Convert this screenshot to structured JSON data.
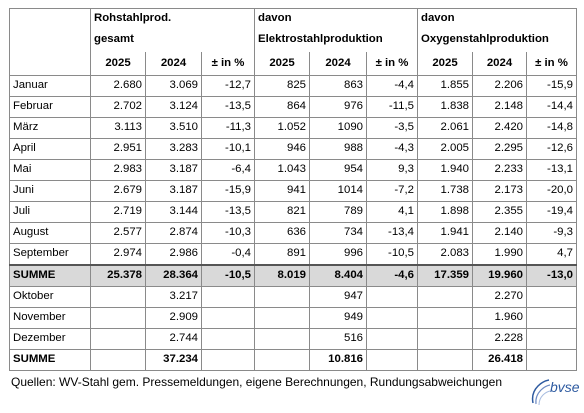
{
  "header": {
    "group1_line1": "Rohstahlprod.",
    "group1_line2": "gesamt",
    "group2_line1": "davon",
    "group2_line2": "Elektrostahlproduktion",
    "group3_line1": "davon",
    "group3_line2": "Oxygenstahlproduktion",
    "col_2025": "2025",
    "col_2024": "2024",
    "col_pct": "± in %"
  },
  "rows": [
    {
      "month": "Januar",
      "r25": "2.680",
      "r24": "3.069",
      "rp": "-12,7",
      "e25": "825",
      "e24": "863",
      "ep": "-4,4",
      "o25": "1.855",
      "o24": "2.206",
      "op": "-15,9"
    },
    {
      "month": "Februar",
      "r25": "2.702",
      "r24": "3.124",
      "rp": "-13,5",
      "e25": "864",
      "e24": "976",
      "ep": "-11,5",
      "o25": "1.838",
      "o24": "2.148",
      "op": "-14,4"
    },
    {
      "month": "März",
      "r25": "3.113",
      "r24": "3.510",
      "rp": "-11,3",
      "e25": "1.052",
      "e24": "1090",
      "ep": "-3,5",
      "o25": "2.061",
      "o24": "2.420",
      "op": "-14,8"
    },
    {
      "month": "April",
      "r25": "2.951",
      "r24": "3.283",
      "rp": "-10,1",
      "e25": "946",
      "e24": "988",
      "ep": "-4,3",
      "o25": "2.005",
      "o24": "2.295",
      "op": "-12,6"
    },
    {
      "month": "Mai",
      "r25": "2.983",
      "r24": "3.187",
      "rp": "-6,4",
      "e25": "1.043",
      "e24": "954",
      "ep": "9,3",
      "o25": "1.940",
      "o24": "2.233",
      "op": "-13,1"
    },
    {
      "month": "Juni",
      "r25": "2.679",
      "r24": "3.187",
      "rp": "-15,9",
      "e25": "941",
      "e24": "1014",
      "ep": "-7,2",
      "o25": "1.738",
      "o24": "2.173",
      "op": "-20,0"
    },
    {
      "month": "Juli",
      "r25": "2.719",
      "r24": "3.144",
      "rp": "-13,5",
      "e25": "821",
      "e24": "789",
      "ep": "4,1",
      "o25": "1.898",
      "o24": "2.355",
      "op": "-19,4"
    },
    {
      "month": "August",
      "r25": "2.577",
      "r24": "2.874",
      "rp": "-10,3",
      "e25": "636",
      "e24": "734",
      "ep": "-13,4",
      "o25": "1.941",
      "o24": "2.140",
      "op": "-9,3"
    },
    {
      "month": "September",
      "r25": "2.974",
      "r24": "2.986",
      "rp": "-0,4",
      "e25": "891",
      "e24": "996",
      "ep": "-10,5",
      "o25": "2.083",
      "o24": "1.990",
      "op": "4,7"
    }
  ],
  "summe1": {
    "label": "SUMME",
    "r25": "25.378",
    "r24": "28.364",
    "rp": "-10,5",
    "e25": "8.019",
    "e24": "8.404",
    "ep": "-4,6",
    "o25": "17.359",
    "o24": "19.960",
    "op": "-13,0"
  },
  "rest": [
    {
      "month": "Oktober",
      "r24": "3.217",
      "e24": "947",
      "o24": "2.270"
    },
    {
      "month": "November",
      "r24": "2.909",
      "e24": "949",
      "o24": "1.960"
    },
    {
      "month": "Dezember",
      "r24": "2.744",
      "e24": "516",
      "o24": "2.228"
    }
  ],
  "summe2": {
    "label": "SUMME",
    "r24": "37.234",
    "e24": "10.816",
    "o24": "26.418"
  },
  "footer": {
    "sources": "Quellen: WV-Stahl gem. Pressemeldungen, eigene Berechnungen, Rundungsabweichungen",
    "logo_text": "bvse",
    "logo_icon": "bvse-logo-icon"
  }
}
